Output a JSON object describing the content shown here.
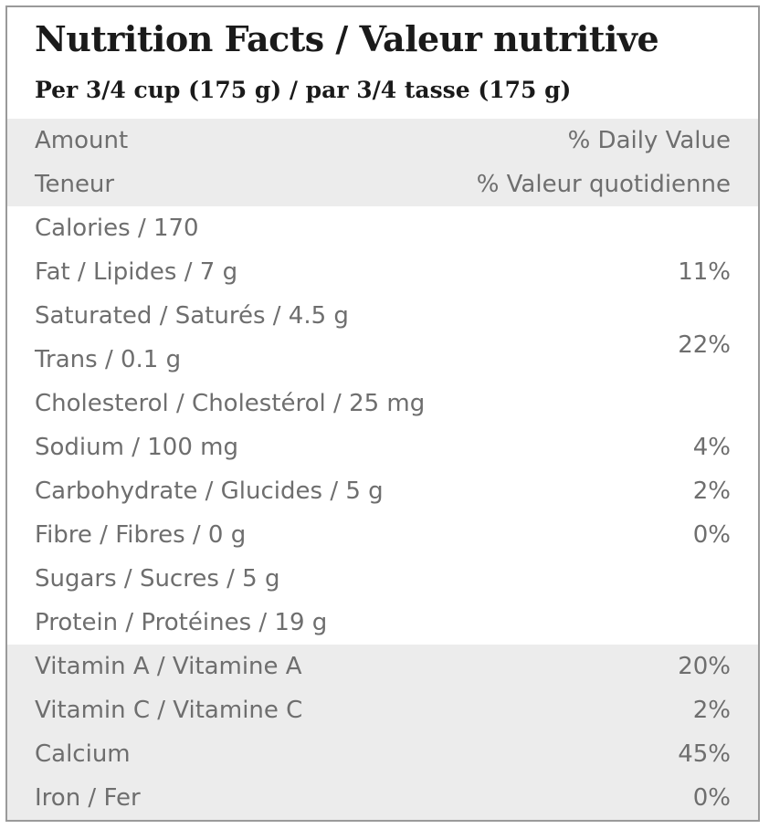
{
  "title": "Nutrition Facts / Valeur nutritive",
  "serving": "Per 3/4 cup (175 g) / par 3/4 tasse (175 g)",
  "header": {
    "amount": "Amount",
    "daily_value": "% Daily Value",
    "teneur": "Teneur",
    "valeur_quotidienne": "% Valeur quotidienne"
  },
  "nutrients": [
    {
      "label": "Calories / 170",
      "dv": ""
    },
    {
      "label": "Fat / Lipides / 7 g",
      "dv": "11%"
    },
    {
      "label": "Saturated / Saturés / 4.5 g",
      "dv": ""
    },
    {
      "label": "Trans / 0.1 g",
      "dv": ""
    },
    {
      "label": "Cholesterol / Cholestérol / 25 mg",
      "dv": ""
    },
    {
      "label": "Sodium / 100 mg",
      "dv": "4%"
    },
    {
      "label": "Carbohydrate / Glucides / 5 g",
      "dv": "2%"
    },
    {
      "label": "Fibre / Fibres / 0 g",
      "dv": "0%"
    },
    {
      "label": "Sugars / Sucres / 5 g",
      "dv": ""
    },
    {
      "label": "Protein / Protéines / 19 g",
      "dv": ""
    }
  ],
  "saturated_trans_dv": "22%",
  "vitamins": [
    {
      "label": "Vitamin A / Vitamine A",
      "dv": "20%"
    },
    {
      "label": "Vitamin C / Vitamine C",
      "dv": "2%"
    },
    {
      "label": "Calcium",
      "dv": "45%"
    },
    {
      "label": "Iron / Fer",
      "dv": "0%"
    }
  ],
  "colors": {
    "border": "#9a9a9a",
    "band": "#ececec",
    "title_text": "#1a1a1a",
    "body_text": "#6e6e6e"
  }
}
